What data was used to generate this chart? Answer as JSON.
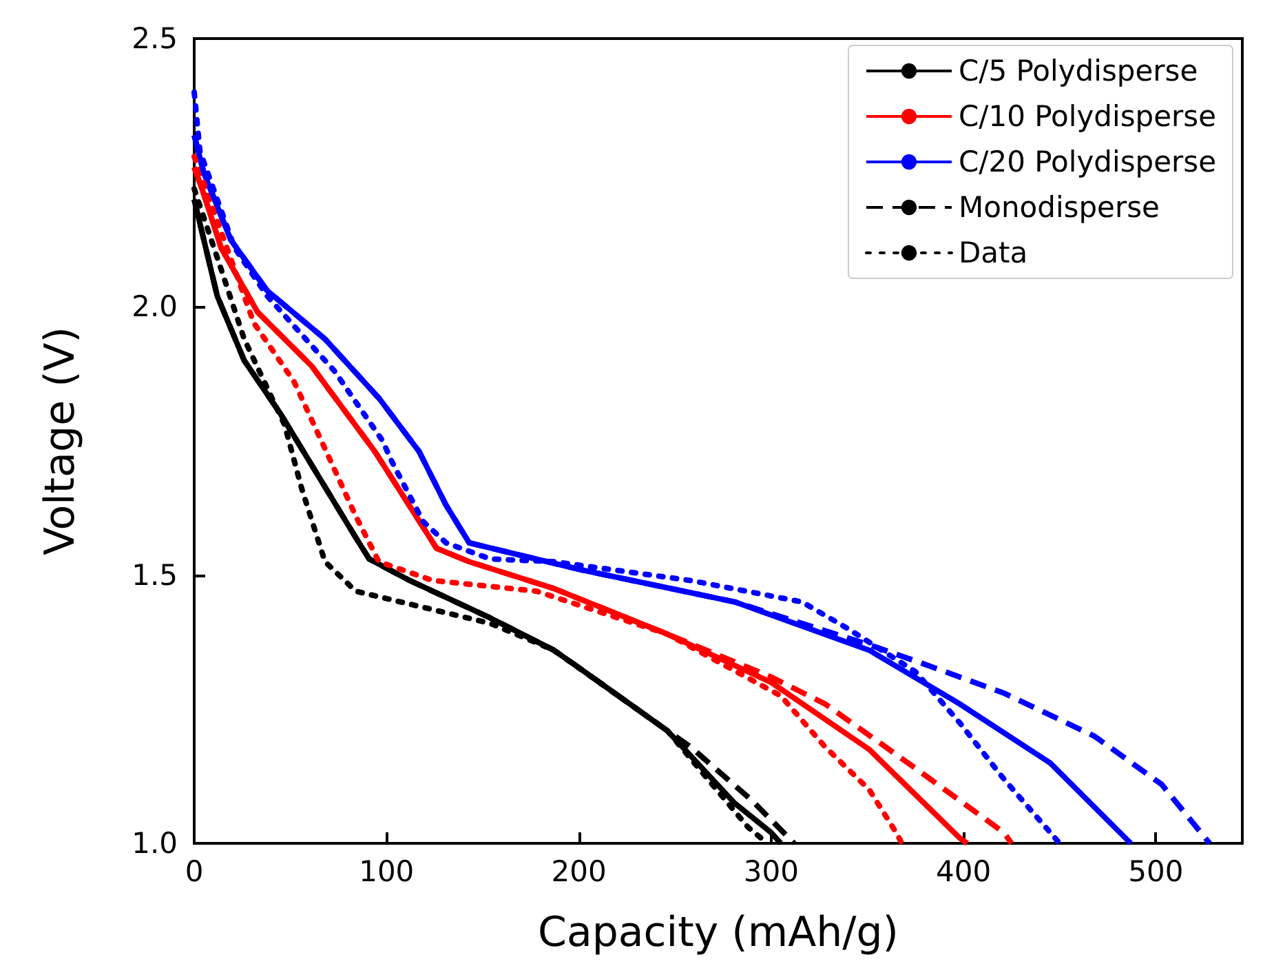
{
  "chart_data": {
    "type": "line",
    "xlabel": "Capacity (mAh/g)",
    "ylabel": "Voltage (V)",
    "xlim": [
      0,
      545
    ],
    "ylim": [
      1.0,
      2.5
    ],
    "xticks": [
      0,
      100,
      200,
      300,
      400,
      500
    ],
    "yticks": [
      {
        "value": 1.0,
        "label": "1.0"
      },
      {
        "value": 1.5,
        "label": "1.5"
      },
      {
        "value": 2.0,
        "label": "2.0"
      },
      {
        "value": 2.5,
        "label": "2.5"
      }
    ],
    "grid": false,
    "legend": "top right",
    "marker": "none",
    "series": [
      {
        "name": "C/5 Polydisperse",
        "color": "#000000",
        "line_style": "solid",
        "x": [
          0,
          12,
          26,
          45,
          84,
          91,
          112,
          154,
          187,
          201,
          246,
          281,
          300,
          305
        ],
        "values": [
          2.2,
          2.02,
          1.9,
          1.8,
          1.57,
          1.53,
          1.49,
          1.42,
          1.36,
          1.325,
          1.21,
          1.075,
          1.02,
          1.0
        ]
      },
      {
        "name": "C/10 Polydisperse",
        "color": "#ff0000",
        "line_style": "solid",
        "x": [
          0,
          5,
          14,
          33,
          61,
          94,
          126,
          143,
          187,
          246,
          300,
          351,
          398,
          402
        ],
        "values": [
          2.26,
          2.21,
          2.11,
          1.99,
          1.89,
          1.73,
          1.55,
          1.525,
          1.475,
          1.39,
          1.3,
          1.175,
          1.01,
          1.0
        ]
      },
      {
        "name": "C/20 Polydisperse",
        "color": "#0000ff",
        "line_style": "solid",
        "x": [
          0,
          5,
          19,
          38,
          68,
          96,
          117,
          131,
          143,
          201,
          281,
          351,
          398,
          445,
          487
        ],
        "values": [
          2.32,
          2.25,
          2.125,
          2.03,
          1.94,
          1.83,
          1.73,
          1.63,
          1.56,
          1.51,
          1.45,
          1.36,
          1.26,
          1.15,
          1.0
        ]
      },
      {
        "name": "Monodisperse",
        "color": "#000000",
        "line_style": "dashed",
        "x": [
          0,
          12,
          26,
          45,
          84,
          91,
          112,
          154,
          187,
          201,
          246,
          258,
          290,
          312
        ],
        "values": [
          2.2,
          2.02,
          1.9,
          1.8,
          1.57,
          1.53,
          1.49,
          1.42,
          1.36,
          1.325,
          1.21,
          1.18,
          1.08,
          1.0
        ]
      },
      {
        "name": "Data",
        "color": "#000000",
        "line_style": "dotted",
        "x": [
          0,
          14,
          26,
          47,
          56,
          68,
          84,
          119,
          154,
          187,
          246,
          288,
          298
        ],
        "values": [
          2.22,
          2.07,
          1.94,
          1.78,
          1.66,
          1.525,
          1.47,
          1.44,
          1.41,
          1.36,
          1.21,
          1.03,
          1.0
        ]
      },
      {
        "color": "#ff0000",
        "line_style": "dashed",
        "x": [
          0,
          5,
          14,
          33,
          61,
          94,
          126,
          143,
          187,
          246,
          300,
          328,
          375,
          421,
          425
        ],
        "values": [
          2.26,
          2.21,
          2.11,
          1.99,
          1.89,
          1.73,
          1.55,
          1.525,
          1.475,
          1.39,
          1.31,
          1.26,
          1.14,
          1.02,
          1.0
        ]
      },
      {
        "color": "#ff0000",
        "line_style": "dotted",
        "x": [
          0,
          31,
          52,
          70,
          84,
          96,
          124,
          178,
          246,
          305,
          328,
          351,
          365,
          368
        ],
        "values": [
          2.28,
          1.97,
          1.86,
          1.72,
          1.61,
          1.525,
          1.49,
          1.47,
          1.39,
          1.275,
          1.18,
          1.1,
          1.02,
          1.0
        ]
      },
      {
        "color": "#0000ff",
        "line_style": "dashed",
        "x": [
          0,
          5,
          19,
          38,
          68,
          96,
          117,
          131,
          143,
          201,
          281,
          351,
          375,
          421,
          468,
          503,
          528
        ],
        "values": [
          2.32,
          2.25,
          2.125,
          2.03,
          1.94,
          1.83,
          1.73,
          1.63,
          1.56,
          1.51,
          1.45,
          1.37,
          1.34,
          1.28,
          1.2,
          1.11,
          1.0
        ]
      },
      {
        "color": "#0000ff",
        "line_style": "dotted",
        "x": [
          0,
          3,
          21,
          38,
          73,
          98,
          103,
          119,
          131,
          154,
          187,
          258,
          316,
          340,
          375,
          398,
          421,
          450
        ],
        "values": [
          2.4,
          2.29,
          2.11,
          2.02,
          1.88,
          1.75,
          1.71,
          1.6,
          1.56,
          1.53,
          1.525,
          1.49,
          1.45,
          1.4,
          1.32,
          1.225,
          1.12,
          1.0
        ]
      }
    ]
  }
}
